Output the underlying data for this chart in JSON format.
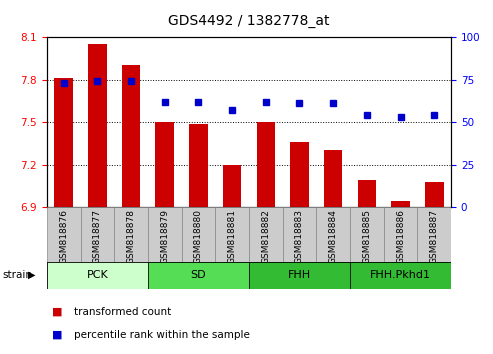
{
  "title": "GDS4492 / 1382778_at",
  "samples": [
    "GSM818876",
    "GSM818877",
    "GSM818878",
    "GSM818879",
    "GSM818880",
    "GSM818881",
    "GSM818882",
    "GSM818883",
    "GSM818884",
    "GSM818885",
    "GSM818886",
    "GSM818887"
  ],
  "bar_values": [
    7.81,
    8.05,
    7.9,
    7.5,
    7.49,
    7.2,
    7.5,
    7.36,
    7.3,
    7.09,
    6.94,
    7.08
  ],
  "percentile_values": [
    73,
    74,
    74,
    62,
    62,
    57,
    62,
    61,
    61,
    54,
    53,
    54
  ],
  "bar_color": "#cc0000",
  "percentile_color": "#0000cc",
  "ylim_left": [
    6.9,
    8.1
  ],
  "ylim_right": [
    0,
    100
  ],
  "yticks_left": [
    6.9,
    7.2,
    7.5,
    7.8,
    8.1
  ],
  "yticks_right": [
    0,
    25,
    50,
    75,
    100
  ],
  "groups_info": [
    {
      "label": "PCK",
      "start": 0,
      "end": 3,
      "color": "#ccffcc"
    },
    {
      "label": "SD",
      "start": 3,
      "end": 6,
      "color": "#55dd55"
    },
    {
      "label": "FHH",
      "start": 6,
      "end": 9,
      "color": "#33bb33"
    },
    {
      "label": "FHH.Pkhd1",
      "start": 9,
      "end": 12,
      "color": "#33bb33"
    }
  ],
  "tick_bg_color": "#cccccc",
  "tick_border_color": "#888888",
  "strain_label": "strain",
  "legend_items": [
    {
      "label": "transformed count",
      "color": "#cc0000"
    },
    {
      "label": "percentile rank within the sample",
      "color": "#0000cc"
    }
  ],
  "title_fontsize": 10,
  "tick_fontsize": 6.5,
  "axis_fontsize": 8,
  "group_fontsize": 8
}
